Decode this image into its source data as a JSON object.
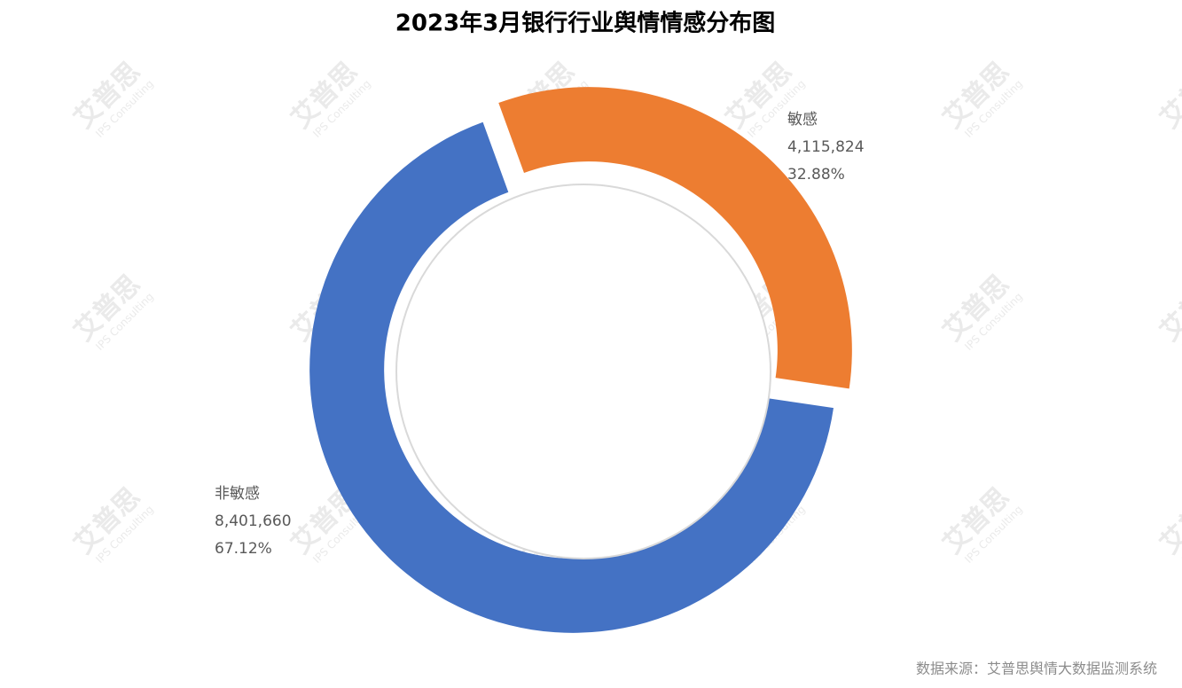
{
  "chart_data": {
    "type": "donut",
    "title": "2023年3月银行行业舆情情感分布图",
    "categories": [
      "敏感",
      "非敏感"
    ],
    "values": [
      4115824,
      8401660
    ],
    "value_labels": [
      "4,115,824",
      "8,401,660"
    ],
    "percent_labels": [
      "32.88%",
      "67.12%"
    ],
    "colors": [
      "#ed7d31",
      "#4472c4"
    ],
    "source": "数据来源：艾普思舆情大数据监测系统",
    "watermark": [
      "艾普思",
      "IPS Consulting"
    ]
  }
}
